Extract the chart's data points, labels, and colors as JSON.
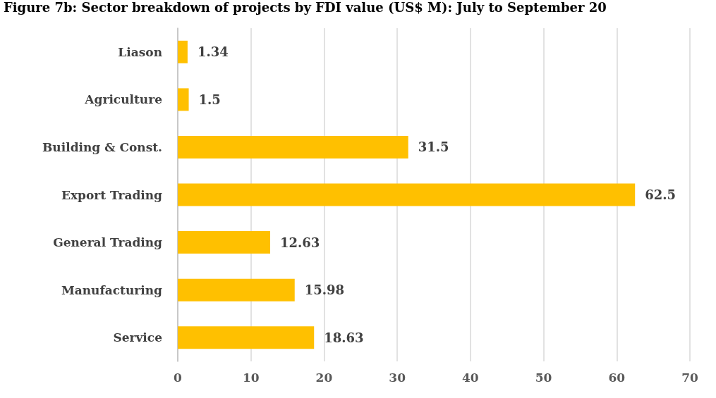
{
  "chart_data": {
    "type": "bar",
    "orientation": "horizontal",
    "title": "Figure 7b: Sector breakdown of projects by FDI value (US$ M): July to September 20",
    "categories": [
      "Liason",
      "Agriculture",
      "Building & Const.",
      "Export Trading",
      "General Trading",
      "Manufacturing",
      "Service"
    ],
    "values": [
      1.34,
      1.5,
      31.5,
      62.5,
      12.63,
      15.98,
      18.63
    ],
    "color": "#ffc000",
    "xlim": [
      0,
      70
    ],
    "xticks": [
      0,
      10,
      20,
      30,
      40,
      50,
      60,
      70
    ],
    "grid": "x",
    "data_labels": true
  }
}
